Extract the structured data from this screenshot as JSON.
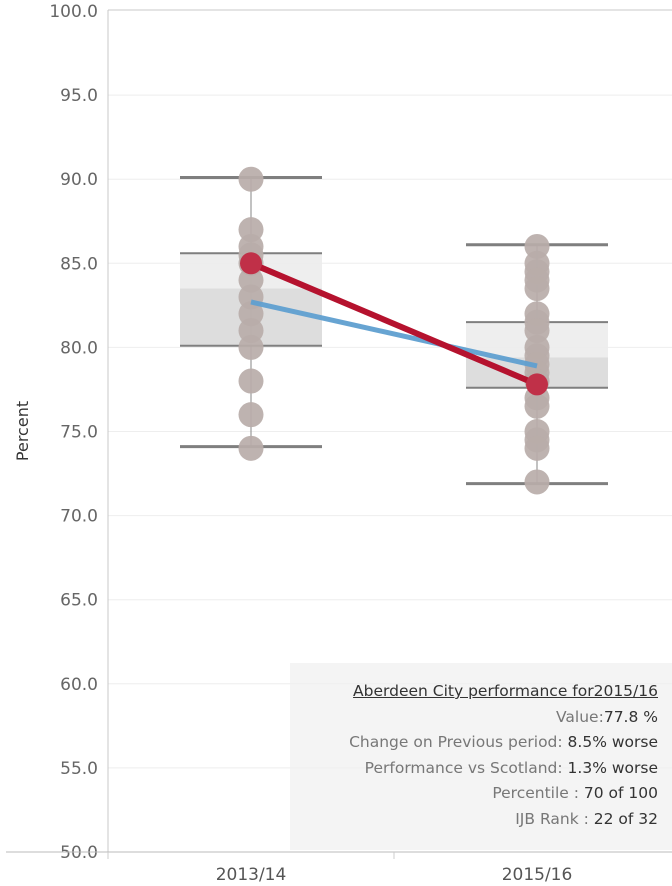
{
  "chart_data": {
    "type": "box",
    "ylabel": "Percent",
    "ylim": [
      50,
      100
    ],
    "yticks": [
      "50.0",
      "55.0",
      "60.0",
      "65.0",
      "70.0",
      "75.0",
      "80.0",
      "85.0",
      "90.0",
      "95.0",
      "100.0"
    ],
    "categories": [
      "2013/14",
      "2015/16"
    ],
    "boxes": [
      {
        "category": "2013/14",
        "whisker_low": 74.1,
        "q1": 80.1,
        "median": 83.5,
        "q3": 85.6,
        "whisker_high": 90.1
      },
      {
        "category": "2015/16",
        "whisker_low": 71.9,
        "q1": 77.6,
        "median": 79.4,
        "q3": 81.5,
        "whisker_high": 86.1
      }
    ],
    "points": [
      {
        "category": "2013/14",
        "values": [
          90.0,
          87.0,
          86.0,
          85.5,
          85.0,
          84.0,
          83.0,
          82.0,
          81.0,
          80.0,
          78.0,
          76.0,
          74.0
        ]
      },
      {
        "category": "2015/16",
        "values": [
          86.0,
          85.0,
          84.5,
          84.0,
          83.5,
          82.0,
          81.5,
          81.0,
          80.0,
          79.5,
          79.0,
          78.5,
          78.0,
          77.0,
          76.5,
          75.0,
          74.5,
          74.0,
          72.0
        ]
      }
    ],
    "series": [
      {
        "values": [
          85.0,
          77.8
        ],
        "color": "#b5122e"
      },
      {
        "values": [
          82.7,
          78.9
        ],
        "color": "#5f9fd0"
      }
    ]
  },
  "tooltip": {
    "title": "Aberdeen City performance for2015/16",
    "value_label": "Value:",
    "value": "77.8 %",
    "change_label": "Change on Previous period: ",
    "change_value": "8.5% worse",
    "vs_label": "Performance vs Scotland: ",
    "vs_value": "1.3% worse",
    "percentile_label": "Percentile : ",
    "percentile_value": " 70 of 100",
    "rank_label": "IJB Rank : ",
    "rank_value": "22 of 32"
  },
  "colors": {
    "dot": "#b8ada9",
    "box_fill": "#d9d9d9",
    "whisker": "#7f7f7f",
    "gridline": "#eeeeee"
  }
}
